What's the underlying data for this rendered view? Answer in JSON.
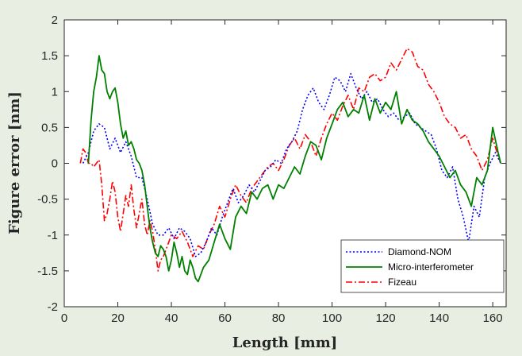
{
  "chart_data": {
    "type": "line",
    "xlabel": "Length [mm]",
    "ylabel": "Figure error [nm]",
    "xlim": [
      0,
      165
    ],
    "ylim": [
      -2,
      2
    ],
    "xticks": [
      0,
      20,
      40,
      60,
      80,
      100,
      120,
      140,
      160
    ],
    "yticks": [
      -2,
      -1.5,
      -1,
      -0.5,
      0,
      0.5,
      1,
      1.5,
      2
    ],
    "legend_position": "bottom-right",
    "series": [
      {
        "name": "Diamond-NOM",
        "color": "#0000ff",
        "dash": "dotted",
        "x": [
          7,
          9,
          11,
          13,
          15,
          17,
          19,
          21,
          23,
          25,
          27,
          29,
          31,
          33,
          35,
          37,
          39,
          41,
          43,
          45,
          47,
          49,
          51,
          53,
          55,
          57,
          59,
          61,
          63,
          65,
          67,
          69,
          71,
          73,
          75,
          77,
          79,
          81,
          83,
          85,
          87,
          89,
          91,
          93,
          95,
          97,
          99,
          101,
          103,
          105,
          107,
          109,
          111,
          113,
          115,
          117,
          119,
          121,
          123,
          125,
          127,
          129,
          131,
          133,
          135,
          137,
          139,
          141,
          143,
          145,
          147,
          149,
          151,
          153,
          155,
          157,
          159,
          161,
          163
        ],
        "y": [
          0.0,
          0.15,
          0.45,
          0.55,
          0.5,
          0.2,
          0.35,
          0.15,
          0.3,
          0.1,
          -0.2,
          -0.2,
          -0.5,
          -0.85,
          -1.0,
          -1.0,
          -0.9,
          -1.05,
          -0.9,
          -0.95,
          -1.05,
          -1.3,
          -1.25,
          -1.1,
          -0.9,
          -1.0,
          -0.75,
          -0.55,
          -0.35,
          -0.55,
          -0.45,
          -0.3,
          -0.4,
          -0.25,
          -0.1,
          -0.05,
          0.05,
          0.0,
          0.2,
          0.3,
          0.45,
          0.75,
          0.95,
          1.05,
          0.85,
          0.75,
          0.95,
          1.2,
          1.15,
          1.0,
          1.25,
          1.05,
          0.9,
          1.0,
          0.85,
          0.9,
          0.75,
          0.65,
          0.7,
          0.6,
          0.65,
          0.7,
          0.55,
          0.5,
          0.45,
          0.4,
          0.2,
          -0.1,
          -0.2,
          -0.05,
          -0.5,
          -0.75,
          -1.1,
          -0.6,
          -0.75,
          -0.2,
          0.0,
          0.15,
          0.0
        ]
      },
      {
        "name": "Micro-interferometer",
        "color": "#008000",
        "dash": "solid",
        "x": [
          9,
          10,
          11,
          12,
          13,
          14,
          15,
          16,
          17,
          18,
          19,
          20,
          21,
          22,
          23,
          24,
          25,
          26,
          27,
          28,
          29,
          30,
          31,
          32,
          33,
          34,
          35,
          36,
          37,
          38,
          39,
          40,
          41,
          42,
          43,
          44,
          45,
          46,
          47,
          48,
          49,
          50,
          52,
          54,
          56,
          58,
          60,
          62,
          64,
          66,
          68,
          70,
          72,
          74,
          76,
          78,
          80,
          82,
          84,
          86,
          88,
          90,
          92,
          94,
          96,
          98,
          100,
          102,
          104,
          106,
          108,
          110,
          112,
          114,
          116,
          118,
          120,
          122,
          124,
          126,
          128,
          130,
          132,
          134,
          136,
          138,
          140,
          142,
          144,
          146,
          148,
          150,
          152,
          154,
          156,
          158,
          160,
          162,
          163
        ],
        "y": [
          0.0,
          0.6,
          1.0,
          1.2,
          1.5,
          1.3,
          1.25,
          1.0,
          0.9,
          1.0,
          1.05,
          0.85,
          0.55,
          0.35,
          0.45,
          0.25,
          0.3,
          0.2,
          0.05,
          0.0,
          -0.1,
          -0.3,
          -0.6,
          -0.9,
          -1.1,
          -1.25,
          -1.3,
          -1.15,
          -1.2,
          -1.3,
          -1.5,
          -1.35,
          -1.1,
          -1.25,
          -1.45,
          -1.3,
          -1.5,
          -1.55,
          -1.35,
          -1.45,
          -1.6,
          -1.65,
          -1.45,
          -1.35,
          -1.1,
          -0.85,
          -1.05,
          -1.2,
          -0.75,
          -0.6,
          -0.7,
          -0.4,
          -0.5,
          -0.35,
          -0.3,
          -0.5,
          -0.3,
          -0.35,
          -0.2,
          -0.05,
          -0.15,
          0.1,
          0.3,
          0.25,
          0.05,
          0.35,
          0.55,
          0.75,
          0.85,
          0.65,
          0.75,
          0.7,
          0.95,
          0.6,
          0.9,
          0.7,
          0.85,
          0.75,
          1.0,
          0.55,
          0.75,
          0.6,
          0.55,
          0.45,
          0.3,
          0.2,
          0.1,
          -0.05,
          -0.2,
          -0.1,
          -0.3,
          -0.4,
          -0.6,
          -0.2,
          -0.3,
          -0.1,
          0.5,
          0.15,
          0.0
        ]
      },
      {
        "name": "Fizeau",
        "color": "#ff0000",
        "dash": "dashdot",
        "x": [
          6,
          7,
          8,
          9,
          10,
          11,
          12,
          13,
          14,
          15,
          16,
          17,
          18,
          19,
          20,
          21,
          22,
          23,
          24,
          25,
          26,
          27,
          28,
          29,
          30,
          31,
          32,
          33,
          34,
          35,
          36,
          37,
          38,
          39,
          40,
          42,
          44,
          46,
          48,
          50,
          52,
          54,
          56,
          58,
          60,
          62,
          64,
          66,
          68,
          70,
          72,
          74,
          76,
          78,
          80,
          82,
          84,
          86,
          88,
          90,
          92,
          94,
          96,
          98,
          100,
          102,
          104,
          106,
          108,
          110,
          112,
          114,
          116,
          118,
          120,
          122,
          124,
          126,
          128,
          130,
          132,
          134,
          136,
          138,
          140,
          142,
          144,
          146,
          148,
          150,
          152,
          154,
          156,
          158,
          160,
          162,
          163
        ],
        "y": [
          0.0,
          0.2,
          0.15,
          0.0,
          0.0,
          -0.05,
          0.0,
          0.05,
          -0.3,
          -0.8,
          -0.7,
          -0.5,
          -0.25,
          -0.4,
          -0.75,
          -0.95,
          -0.7,
          -0.45,
          -0.6,
          -0.3,
          -0.65,
          -0.9,
          -0.7,
          -0.5,
          -0.85,
          -1.0,
          -0.8,
          -0.95,
          -1.2,
          -1.5,
          -1.35,
          -1.3,
          -1.2,
          -1.1,
          -1.0,
          -1.05,
          -0.95,
          -1.1,
          -1.3,
          -1.15,
          -1.2,
          -1.0,
          -0.85,
          -0.6,
          -0.75,
          -0.5,
          -0.3,
          -0.45,
          -0.55,
          -0.35,
          -0.25,
          -0.15,
          -0.05,
          0.0,
          -0.1,
          0.05,
          0.25,
          0.35,
          0.2,
          0.4,
          0.3,
          0.1,
          0.35,
          0.55,
          0.7,
          0.6,
          0.8,
          0.95,
          0.75,
          1.05,
          1.0,
          1.2,
          1.25,
          1.15,
          1.2,
          1.4,
          1.3,
          1.45,
          1.6,
          1.55,
          1.35,
          1.3,
          1.1,
          1.0,
          0.85,
          0.65,
          0.55,
          0.5,
          0.35,
          0.4,
          0.2,
          0.1,
          -0.1,
          0.05,
          0.35,
          0.1,
          0.0
        ]
      }
    ]
  }
}
